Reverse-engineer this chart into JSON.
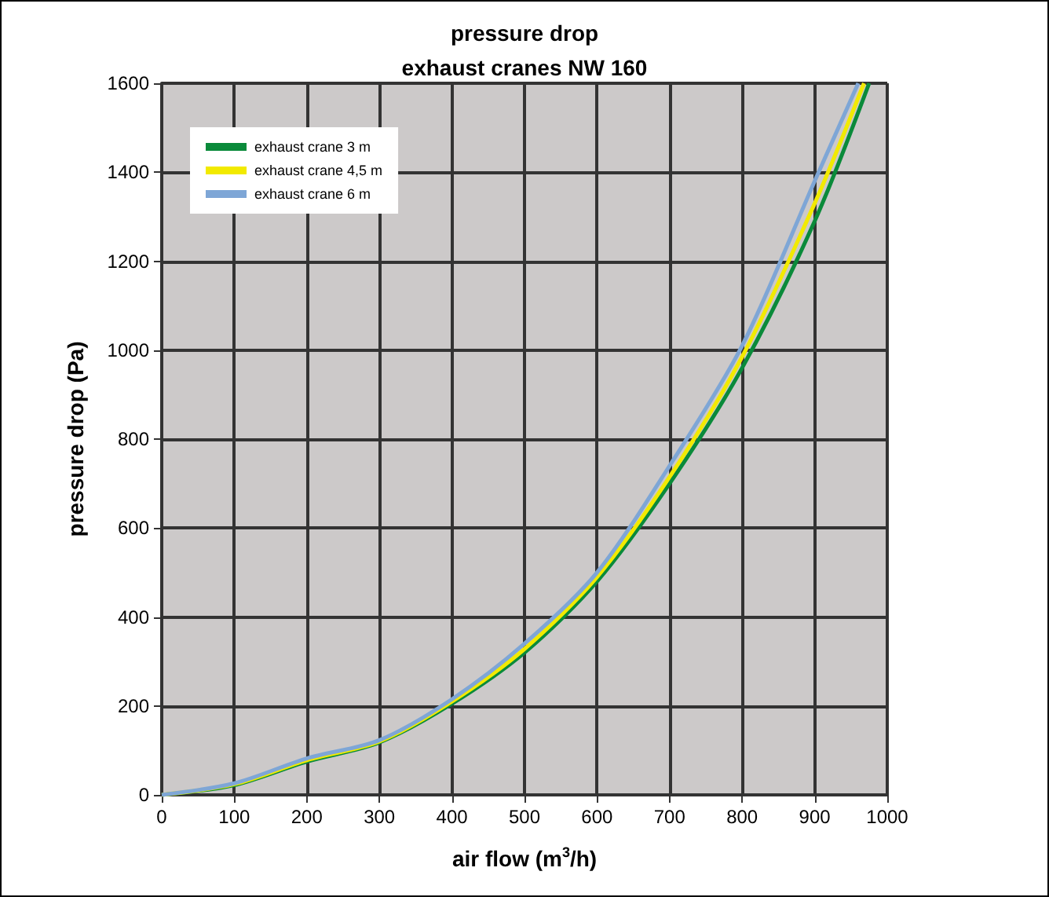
{
  "chart_data": {
    "type": "line",
    "title": "pressure drop",
    "subtitle": "exhaust cranes NW 160",
    "xlabel": "air flow (m$^{3}$/h)",
    "ylabel": "pressure drop (Pa)",
    "xlim": [
      0,
      1000
    ],
    "xticks": [
      0,
      100,
      200,
      300,
      400,
      500,
      600,
      700,
      800,
      900,
      1000
    ],
    "ylim": [
      0,
      1600
    ],
    "yticks": [
      0,
      200,
      400,
      600,
      800,
      1000,
      1200,
      1400,
      1600
    ],
    "grid": true,
    "legend": "top left",
    "marker": "none",
    "series": [
      {
        "name": "exhaust crane 3 m",
        "color": "#0a8a3a",
        "x": [
          0,
          100,
          200,
          300,
          400,
          500,
          600,
          700,
          800,
          900,
          975
        ],
        "values": [
          0,
          22,
          75,
          118,
          205,
          320,
          480,
          700,
          960,
          1290,
          1600
        ]
      },
      {
        "name": "exhaust crane 4,5 m",
        "color": "#f2ea00",
        "x": [
          0,
          100,
          200,
          300,
          400,
          500,
          600,
          700,
          800,
          900,
          968
        ],
        "values": [
          0,
          24,
          78,
          120,
          210,
          328,
          490,
          715,
          985,
          1330,
          1600
        ]
      },
      {
        "name": "exhaust crane 6 m",
        "color": "#7ea6d6",
        "x": [
          0,
          100,
          200,
          300,
          400,
          500,
          600,
          700,
          800,
          900,
          960
        ],
        "values": [
          0,
          26,
          82,
          123,
          215,
          340,
          500,
          740,
          1010,
          1380,
          1600
        ]
      }
    ]
  }
}
